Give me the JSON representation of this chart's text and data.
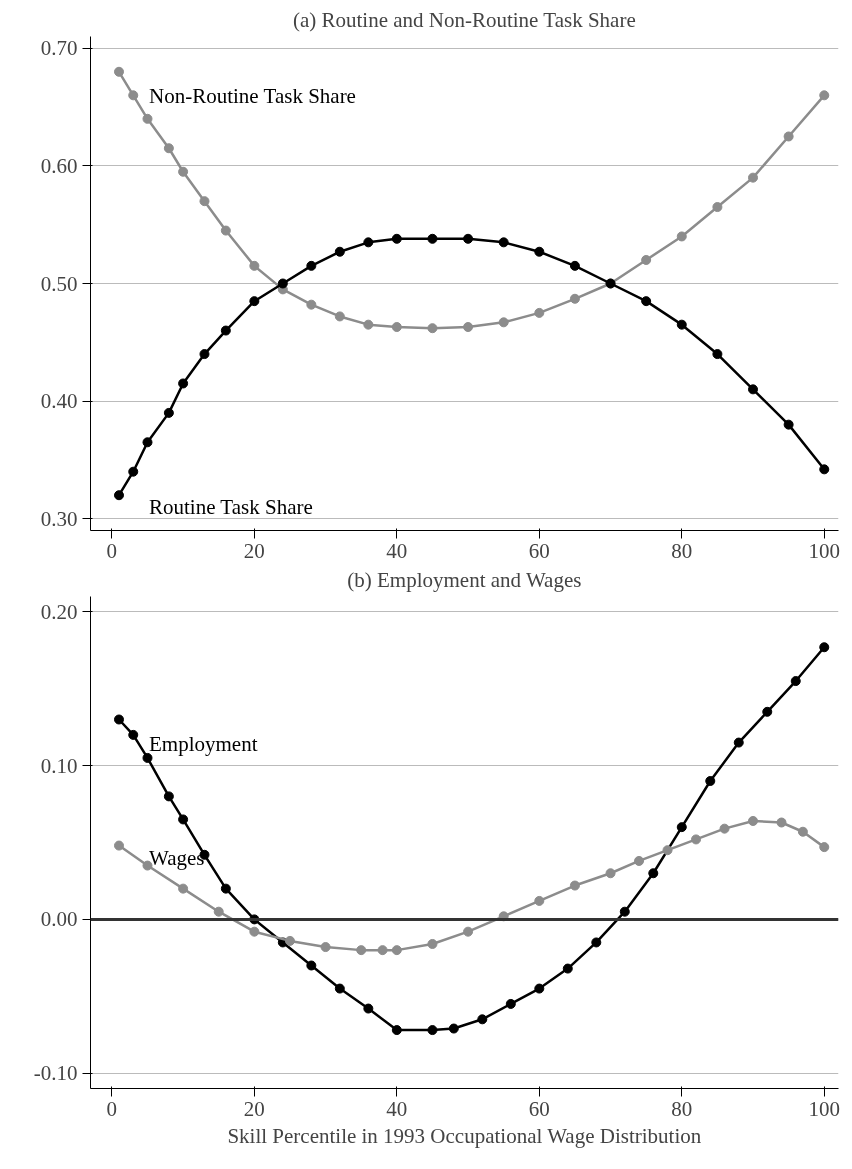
{
  "chart_data": [
    {
      "type": "line",
      "title": "(a) Routine and Non-Routine Task Share",
      "xlim": [
        -3,
        102
      ],
      "xticks": [
        0,
        20,
        40,
        60,
        80,
        100
      ],
      "ylim": [
        0.29,
        0.71
      ],
      "yticks": [
        {
          "value": 0.3,
          "label": "0.30"
        },
        {
          "value": 0.4,
          "label": "0.40"
        },
        {
          "value": 0.5,
          "label": "0.50"
        },
        {
          "value": 0.6,
          "label": "0.60"
        },
        {
          "value": 0.7,
          "label": "0.70"
        }
      ],
      "grid": "y",
      "marker": "circle",
      "line_style": "solid",
      "x": [
        1,
        3,
        5,
        8,
        10,
        13,
        16,
        20,
        24,
        28,
        32,
        36,
        40,
        45,
        50,
        55,
        60,
        65,
        70,
        75,
        80,
        85,
        90,
        95,
        100
      ],
      "series": [
        {
          "name": "Non-Routine Task Share",
          "color": "#8c8c8c",
          "values": [
            0.68,
            0.66,
            0.64,
            0.615,
            0.595,
            0.57,
            0.545,
            0.515,
            0.495,
            0.482,
            0.472,
            0.465,
            0.463,
            0.462,
            0.463,
            0.467,
            0.475,
            0.487,
            0.5,
            0.52,
            0.54,
            0.565,
            0.59,
            0.625,
            0.66
          ]
        },
        {
          "name": "Routine Task Share",
          "color": "#000000",
          "values": [
            0.32,
            0.34,
            0.365,
            0.39,
            0.415,
            0.44,
            0.46,
            0.485,
            0.5,
            0.515,
            0.527,
            0.535,
            0.538,
            0.538,
            0.538,
            0.535,
            0.527,
            0.515,
            0.5,
            0.485,
            0.465,
            0.44,
            0.41,
            0.38,
            0.342
          ]
        }
      ]
    },
    {
      "type": "line",
      "title": "(b) Employment and Wages",
      "xlabel": "Skill Percentile in 1993 Occupational Wage Distribution",
      "xlim": [
        -3,
        102
      ],
      "xticks": [
        0,
        20,
        40,
        60,
        80,
        100
      ],
      "ylim": [
        -0.11,
        0.21
      ],
      "yticks": [
        {
          "value": -0.1,
          "label": "-0.10"
        },
        {
          "value": 0,
          "label": "0.00"
        },
        {
          "value": 0.1,
          "label": "0.10"
        },
        {
          "value": 0.2,
          "label": "0.20"
        }
      ],
      "grid": "y",
      "marker": "circle",
      "line_style": "solid",
      "ref_lines": [
        {
          "axis": "y",
          "value": 0,
          "color": "#333333"
        }
      ],
      "series": [
        {
          "name": "Employment",
          "color": "#000000",
          "x": [
            1,
            3,
            5,
            8,
            10,
            13,
            16,
            20,
            24,
            28,
            32,
            36,
            40,
            45,
            48,
            52,
            56,
            60,
            64,
            68,
            72,
            76,
            80,
            84,
            88,
            92,
            96,
            100
          ],
          "values": [
            0.13,
            0.12,
            0.105,
            0.08,
            0.065,
            0.042,
            0.02,
            0.0,
            -0.015,
            -0.03,
            -0.045,
            -0.058,
            -0.072,
            -0.072,
            -0.071,
            -0.065,
            -0.055,
            -0.045,
            -0.032,
            -0.015,
            0.005,
            0.03,
            0.06,
            0.09,
            0.115,
            0.135,
            0.155,
            0.177
          ]
        },
        {
          "name": "Wages",
          "color": "#8c8c8c",
          "x": [
            1,
            5,
            10,
            15,
            20,
            25,
            30,
            35,
            38,
            40,
            45,
            50,
            55,
            60,
            65,
            70,
            74,
            78,
            82,
            86,
            90,
            94,
            97,
            100
          ],
          "values": [
            0.048,
            0.035,
            0.02,
            0.005,
            -0.008,
            -0.014,
            -0.018,
            -0.02,
            -0.02,
            -0.02,
            -0.016,
            -0.008,
            0.002,
            0.012,
            0.022,
            0.03,
            0.038,
            0.045,
            0.052,
            0.059,
            0.064,
            0.063,
            0.057,
            0.047
          ]
        }
      ]
    }
  ]
}
